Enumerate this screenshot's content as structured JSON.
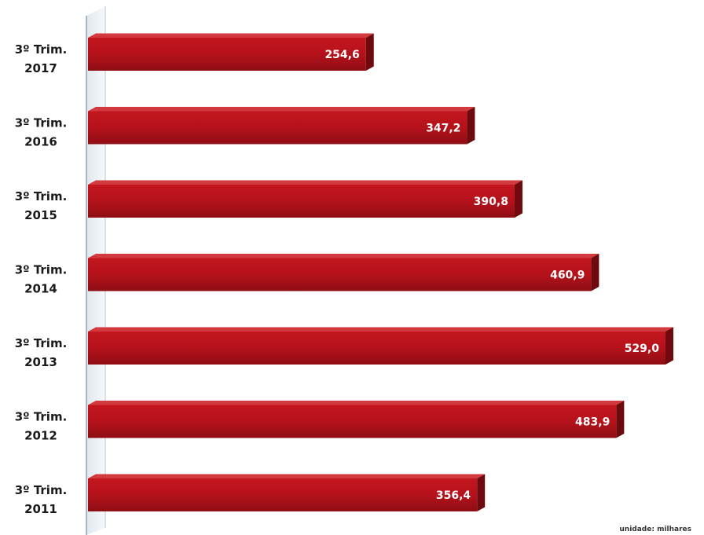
{
  "chart_data": {
    "type": "bar",
    "orientation": "horizontal",
    "categories": [
      [
        "3º Trim.",
        "2017"
      ],
      [
        "3º Trim.",
        "2016"
      ],
      [
        "3º Trim.",
        "2015"
      ],
      [
        "3º Trim.",
        "2014"
      ],
      [
        "3º Trim.",
        "2013"
      ],
      [
        "3º Trim.",
        "2012"
      ],
      [
        "3º Trim.",
        "2011"
      ]
    ],
    "values": [
      254.6,
      347.2,
      390.8,
      460.9,
      529.0,
      483.9,
      356.4
    ],
    "value_labels": [
      "254,6",
      "347,2",
      "390,8",
      "460,9",
      "529,0",
      "483,9",
      "356,4"
    ],
    "xlim": [
      0,
      550
    ],
    "grid": false,
    "legend": "none",
    "note": "unidade: milhares",
    "colors": {
      "bar_front": "#b5121b",
      "bar_top": "#d23a3f",
      "bar_side": "#6e0a0e",
      "axis_wall": "#e9eff4",
      "axis_edge": "#8fa2b3"
    }
  }
}
